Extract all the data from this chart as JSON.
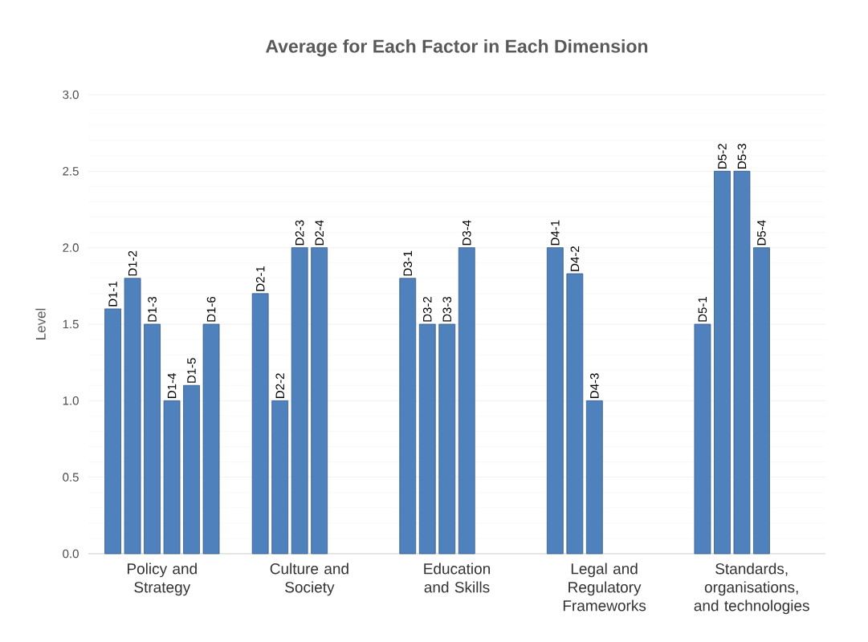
{
  "chart_data": {
    "type": "bar",
    "title": "Average for Each Factor in Each Dimension",
    "ylabel": "Level",
    "categories": [
      "Policy and Strategy",
      "Culture and Society",
      "Education and Skills",
      "Legal and Regulatory Frameworks",
      "Standards, organisations, and technologies"
    ],
    "series": [
      {
        "color": "#4f81bd",
        "values": [
          1.6,
          1.7,
          1.8,
          2.0,
          1.5
        ],
        "value_labels": [
          "D1-1",
          "D2-1",
          "D3-1",
          "D4-1",
          "D5-1"
        ]
      },
      {
        "color": "#4f81bd",
        "values": [
          1.8,
          1.0,
          1.5,
          1.83,
          2.5
        ],
        "value_labels": [
          "D1-2",
          "D2-2",
          "D3-2",
          "D4-2",
          "D5-2"
        ]
      },
      {
        "color": "#4f81bd",
        "values": [
          1.5,
          2.0,
          1.5,
          1.0,
          2.5
        ],
        "value_labels": [
          "D1-3",
          "D2-3",
          "D3-3",
          "D4-3",
          "D5-3"
        ]
      },
      {
        "color": "#4f81bd",
        "values": [
          1.0,
          2.0,
          2.0,
          null,
          2.0
        ],
        "value_labels": [
          "D1-4",
          "D2-4",
          "D3-4",
          null,
          "D5-4"
        ]
      },
      {
        "color": "#4f81bd",
        "values": [
          1.1,
          null,
          null,
          null,
          null
        ],
        "value_labels": [
          "D1-5",
          null,
          null,
          null,
          null
        ]
      },
      {
        "color": "#4f81bd",
        "values": [
          1.5,
          null,
          null,
          null,
          null
        ],
        "value_labels": [
          "D1-6",
          null,
          null,
          null,
          null
        ]
      }
    ],
    "ylim": [
      0,
      3
    ],
    "yticks": [
      {
        "value": 0,
        "label": "0.0"
      },
      {
        "value": 0.5,
        "label": "0.5"
      },
      {
        "value": 1,
        "label": "1.0"
      },
      {
        "value": 1.5,
        "label": "1.5"
      },
      {
        "value": 2,
        "label": "2.0"
      },
      {
        "value": 2.5,
        "label": "2.5"
      },
      {
        "value": 3,
        "label": "3.0"
      }
    ],
    "grid": "y"
  }
}
